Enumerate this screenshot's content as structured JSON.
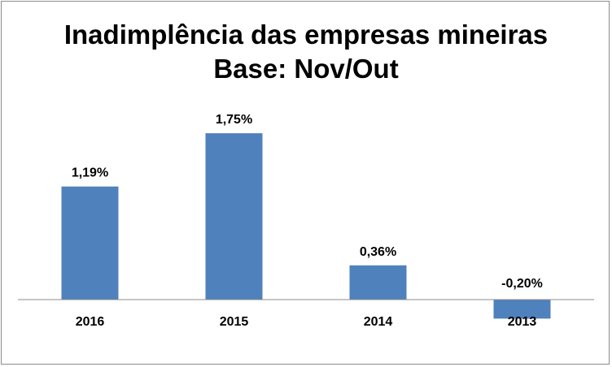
{
  "chart_data": {
    "type": "bar",
    "title": "Inadimplência das empresas mineiras",
    "subtitle": "Base: Nov/Out",
    "categories": [
      "2016",
      "2015",
      "2014",
      "2013"
    ],
    "values": [
      1.19,
      1.75,
      0.36,
      -0.2
    ],
    "data_labels": [
      "1,19%",
      "1,75%",
      "0,36%",
      "-0,20%"
    ],
    "xlabel": "",
    "ylabel": "",
    "ylim": [
      -0.5,
      2.5
    ],
    "grid": false,
    "legend": "none",
    "bar_color": "#4f81bd",
    "axis_color": "#8c8c8c"
  }
}
